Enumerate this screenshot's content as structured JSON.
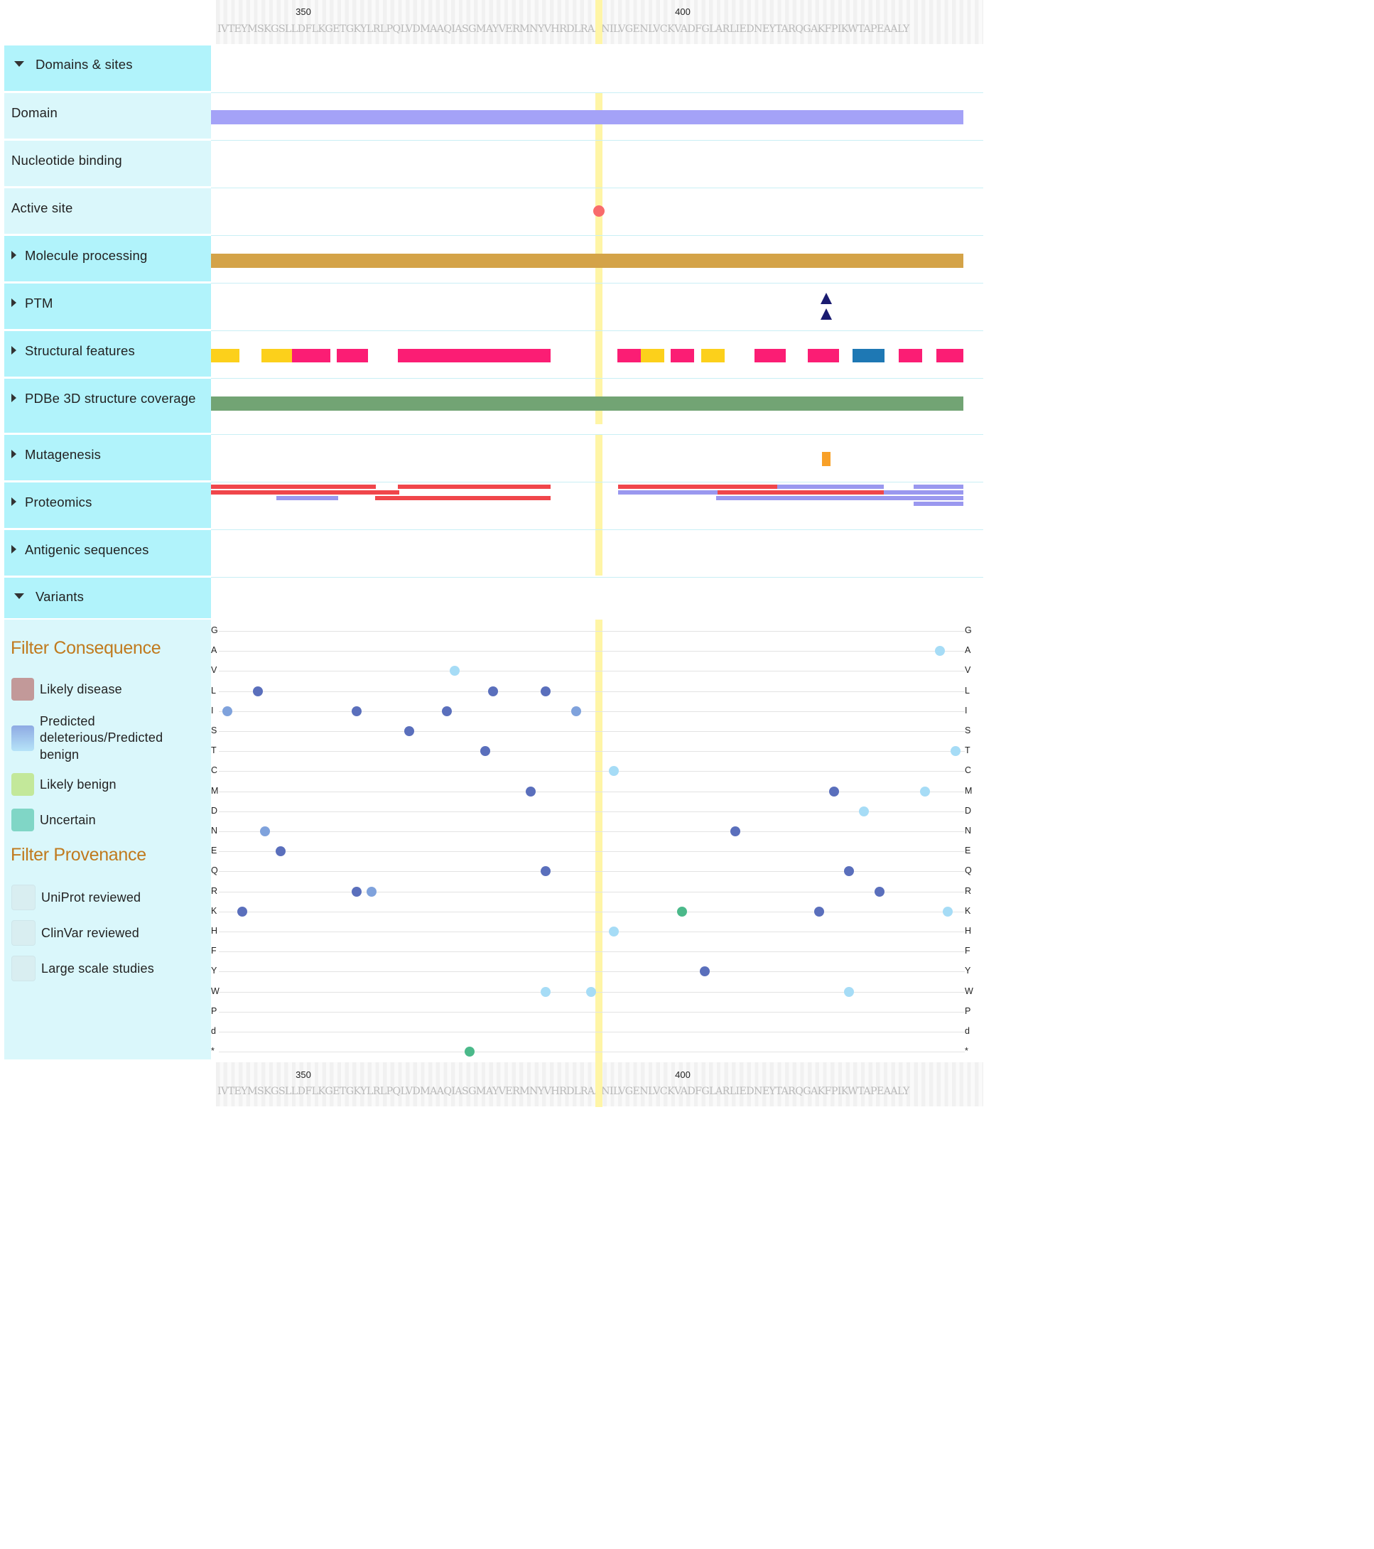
{
  "ruler": {
    "tick_labels": [
      "350",
      "400"
    ],
    "sequence": "IVTEYMSKGSLLDFLKGETGKYLRLPQLVDMAAQIASGMAYVERMNYVHRDLRAANILVGENLVCKVADFGLARLIEDNEYTARQGAKFPIKWTAPEAALY"
  },
  "tracks": {
    "domains_sites": "Domains & sites",
    "domain": "Domain",
    "nucleotide_binding": "Nucleotide binding",
    "active_site": "Active site",
    "molecule_processing": "Molecule processing",
    "ptm": "PTM",
    "structural_features": "Structural features",
    "pdbe": "PDBe 3D structure coverage",
    "mutagenesis": "Mutagenesis",
    "proteomics": "Proteomics",
    "antigenic": "Antigenic sequences",
    "variants": "Variants"
  },
  "filters": {
    "consequence_title": "Filter Consequence",
    "likely_disease": "Likely disease",
    "predicted": "Predicted deleterious/Predicted benign",
    "likely_benign": "Likely benign",
    "uncertain": "Uncertain",
    "provenance_title": "Filter Provenance",
    "uniprot": "UniProt reviewed",
    "clinvar": "ClinVar reviewed",
    "large_scale": "Large scale studies"
  },
  "variant_rows": [
    "G",
    "A",
    "V",
    "L",
    "I",
    "S",
    "T",
    "C",
    "M",
    "D",
    "N",
    "E",
    "Q",
    "R",
    "K",
    "H",
    "F",
    "Y",
    "W",
    "P",
    "d",
    "*"
  ],
  "colors": {
    "domain": "#a4a2f7",
    "active_site": "#f86b6b",
    "molecule_processing": "#d4a348",
    "ptm": "#1a1b70",
    "helix": "#fb1d74",
    "strand": "#fcd01b",
    "turn": "#1e78b4",
    "pdbe": "#72a474",
    "mutagenesis": "#f8a028",
    "proteomics_unique": "#f0464b",
    "proteomics_nonunique": "#9a98ef",
    "variant_deleterious": "#5a6fbc",
    "variant_mid": "#7fa2dc",
    "variant_benign": "#a6dcf6",
    "variant_uncertain": "#4bb98a",
    "highlight": "#fff5a6"
  }
}
